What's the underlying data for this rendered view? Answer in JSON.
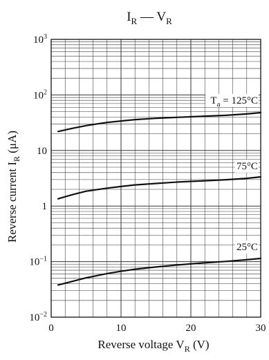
{
  "chart_data": {
    "type": "line",
    "title": {
      "main": "I",
      "main_sub": "R",
      "dash": " — ",
      "tail": "V",
      "tail_sub": "R"
    },
    "xlabel": {
      "text": "Reverse voltage  V",
      "sub": "R",
      "unit": "  (V)"
    },
    "ylabel": {
      "text": "Reverse current  I",
      "sub": "R",
      "unit": "  (μA)"
    },
    "x": {
      "min": 0,
      "max": 30,
      "major": 10
    },
    "xticks": [
      {
        "value": 0,
        "label": "0"
      },
      {
        "value": 10,
        "label": "10"
      },
      {
        "value": 20,
        "label": "20"
      },
      {
        "value": 30,
        "label": "30"
      }
    ],
    "y": {
      "scale": "log",
      "min": 0.01,
      "max": 1000
    },
    "yticks": [
      {
        "value": 1000,
        "base": "10",
        "exp": "3"
      },
      {
        "value": 100,
        "base": "10",
        "exp": "2"
      },
      {
        "value": 10,
        "base": "10",
        "exp": ""
      },
      {
        "value": 1,
        "base": "1",
        "exp": ""
      },
      {
        "value": 0.1,
        "base": "10",
        "exp": "−1"
      },
      {
        "value": 0.01,
        "base": "10",
        "exp": "−2"
      }
    ],
    "grid": true,
    "series": [
      {
        "name": "25°C",
        "x": [
          1,
          3,
          5,
          8,
          10,
          12,
          15,
          18,
          20,
          22,
          25,
          28,
          30
        ],
        "y": [
          0.038,
          0.044,
          0.051,
          0.061,
          0.067,
          0.073,
          0.08,
          0.087,
          0.091,
          0.095,
          0.101,
          0.108,
          0.114
        ]
      },
      {
        "name": "75°C",
        "x": [
          1,
          3,
          5,
          8,
          10,
          12,
          15,
          18,
          20,
          22,
          25,
          28,
          30
        ],
        "y": [
          1.35,
          1.6,
          1.85,
          2.1,
          2.25,
          2.4,
          2.55,
          2.7,
          2.78,
          2.85,
          2.98,
          3.15,
          3.35
        ]
      },
      {
        "name": "125°C",
        "x": [
          1,
          3,
          5,
          8,
          10,
          12,
          15,
          18,
          20,
          22,
          25,
          28,
          30
        ],
        "y": [
          22,
          25,
          28,
          32,
          34,
          36,
          38,
          39.5,
          40.5,
          41.5,
          43,
          45.5,
          48
        ]
      }
    ],
    "annotations": [
      {
        "series": 2,
        "prefix": "T",
        "sub": "a",
        "text": " = 125°C",
        "x": 29.6,
        "y": 70
      },
      {
        "series": 1,
        "prefix": "",
        "sub": "",
        "text": "75°C",
        "x": 29.6,
        "y": 4.6
      },
      {
        "series": 0,
        "prefix": "",
        "sub": "",
        "text": "25°C",
        "x": 29.6,
        "y": 0.16
      }
    ],
    "colors": {
      "axis": "#111111",
      "grid": "#333333",
      "line": "#111111"
    }
  }
}
